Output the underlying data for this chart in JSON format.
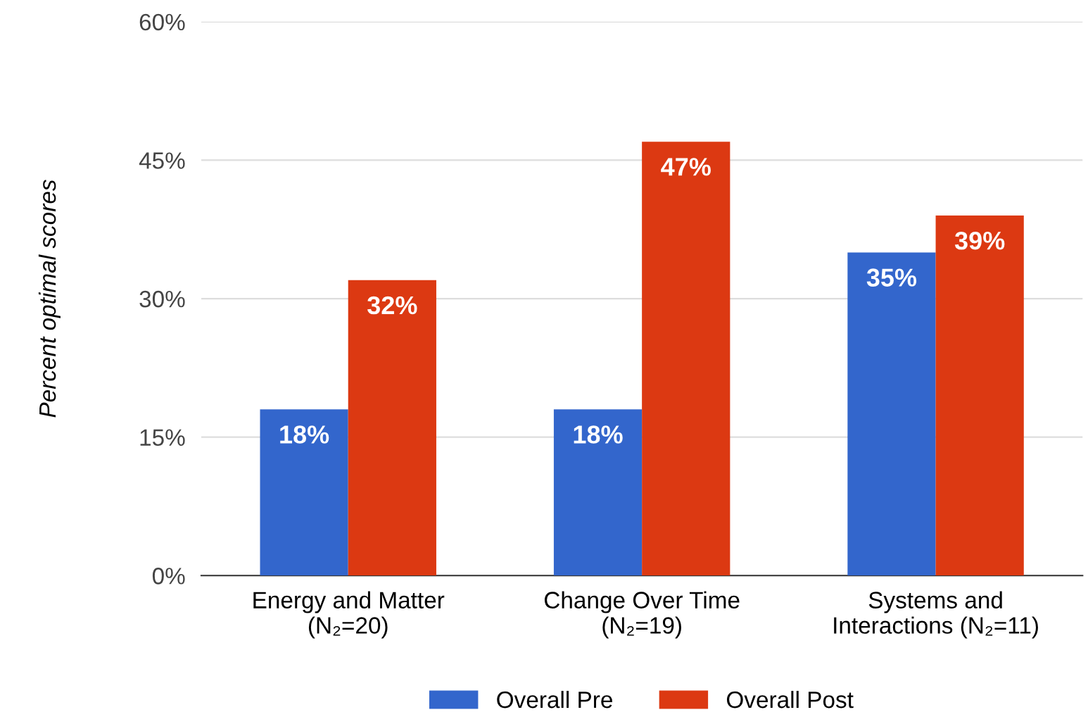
{
  "chart_data": {
    "type": "bar",
    "ylabel": "Percent optimal scores",
    "categories": [
      "Energy and Matter\n(N₂=20)",
      "Change Over Time\n(N₂=19)",
      "Systems and\nInteractions (N₂=11)"
    ],
    "series": [
      {
        "name": "Overall Pre",
        "color": "#3366cc",
        "values": [
          18,
          18,
          35
        ],
        "value_labels": [
          "18%",
          "18%",
          "35%"
        ]
      },
      {
        "name": "Overall Post",
        "color": "#dc3912",
        "values": [
          32,
          47,
          39
        ],
        "value_labels": [
          "32%",
          "47%",
          "39%"
        ]
      }
    ],
    "ylim": [
      0,
      60
    ],
    "yticks": [
      {
        "value": 0,
        "label": "0%"
      },
      {
        "value": 15,
        "label": "15%"
      },
      {
        "value": 30,
        "label": "30%"
      },
      {
        "value": 45,
        "label": "45%"
      },
      {
        "value": 60,
        "label": "60%"
      }
    ],
    "grid": "y",
    "legend": "bottom"
  }
}
